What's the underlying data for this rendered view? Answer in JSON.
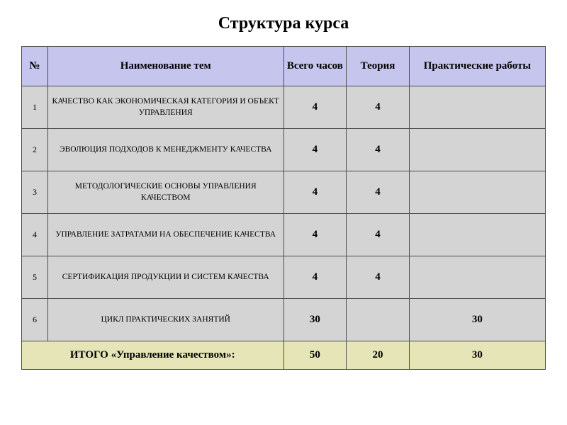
{
  "title": "Структура курса",
  "table": {
    "headers": {
      "num": "№",
      "name": "Наименование тем",
      "total": "Всего часов",
      "theory": "Теория",
      "practice": "Практические работы"
    },
    "rows": [
      {
        "num": "1",
        "name": "КАЧЕСТВО КАК ЭКОНОМИЧЕСКАЯ КАТЕГОРИЯ И ОБЪЕКТ УПРАВЛЕНИЯ",
        "total": "4",
        "theory": "4",
        "practice": ""
      },
      {
        "num": "2",
        "name": "ЭВОЛЮЦИЯ ПОДХОДОВ К МЕНЕДЖМЕНТУ КАЧЕСТВА",
        "total": "4",
        "theory": "4",
        "practice": ""
      },
      {
        "num": "3",
        "name": "МЕТОДОЛОГИЧЕСКИЕ ОСНОВЫ УПРАВЛЕНИЯ КАЧЕСТВОМ",
        "total": "4",
        "theory": "4",
        "practice": ""
      },
      {
        "num": "4",
        "name": "УПРАВЛЕНИЕ ЗАТРАТАМИ НА ОБЕСПЕЧЕНИЕ КАЧЕСТВА",
        "total": "4",
        "theory": "4",
        "practice": ""
      },
      {
        "num": "5",
        "name": "СЕРТИФИКАЦИЯ ПРОДУКЦИИ И СИСТЕМ КАЧЕСТВА",
        "total": "4",
        "theory": "4",
        "practice": ""
      },
      {
        "num": "6",
        "name": "ЦИКЛ ПРАКТИЧЕСКИХ ЗАНЯТИЙ",
        "total": "30",
        "theory": "",
        "practice": "30"
      }
    ],
    "footer": {
      "label": "ИТОГО «Управление качеством»:",
      "total": "50",
      "theory": "20",
      "practice": "30"
    }
  },
  "colors": {
    "header_bg": "#c5c5ed",
    "row_bg": "#d4d4d4",
    "footer_bg": "#e5e5b8",
    "border": "#4a4a4a",
    "page_bg": "#ffffff",
    "text": "#000000"
  }
}
